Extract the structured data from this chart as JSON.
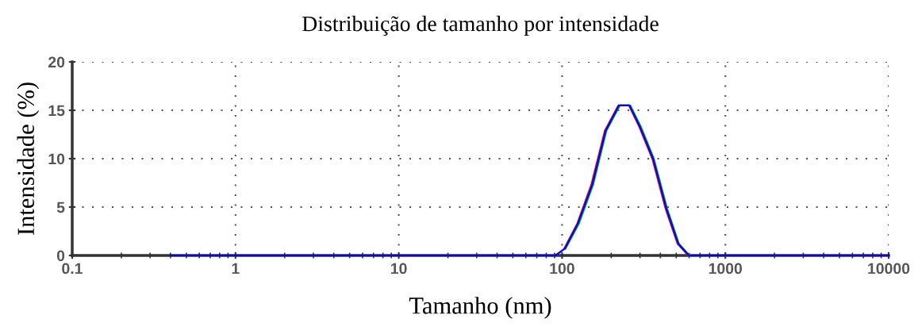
{
  "chart_data": {
    "type": "line",
    "title": "Distribuição de tamanho por intensidade",
    "xlabel": "Tamanho (nm)",
    "ylabel": "Intensidade (%)",
    "log": "x",
    "xlim": [
      0.1,
      10000
    ],
    "xticks": [
      0.1,
      1,
      10,
      100,
      1000,
      10000
    ],
    "ylim": [
      0,
      20
    ],
    "yticks": [
      0,
      5,
      10,
      15,
      20
    ],
    "grid": true,
    "line_style": "solid",
    "marker": "none",
    "series": [
      {
        "color": "#ff0000",
        "x": [
          103,
          124,
          151,
          183,
          221,
          257,
          297,
          357,
          431,
          510,
          592
        ],
        "values": [
          0.7,
          3.3,
          7.3,
          12.9,
          15.5,
          15.5,
          13.3,
          10.0,
          4.8,
          1.2,
          0
        ]
      },
      {
        "color": "#00c000",
        "x": [
          105,
          127,
          155,
          187,
          226,
          262,
          304,
          365,
          441,
          520,
          602
        ],
        "values": [
          0.7,
          3.3,
          7.3,
          12.9,
          15.5,
          15.5,
          13.3,
          10.0,
          4.8,
          1.2,
          0
        ]
      },
      {
        "color": "#0000ff",
        "x": [
          0.4,
          1,
          10,
          91,
          104,
          125,
          153,
          185,
          223,
          259,
          300,
          361,
          436,
          515,
          598,
          1000,
          10000
        ],
        "values": [
          0,
          0,
          0,
          0,
          0.7,
          3.3,
          7.3,
          12.9,
          15.5,
          15.5,
          13.3,
          10.0,
          4.8,
          1.2,
          0,
          0,
          0
        ]
      }
    ]
  }
}
